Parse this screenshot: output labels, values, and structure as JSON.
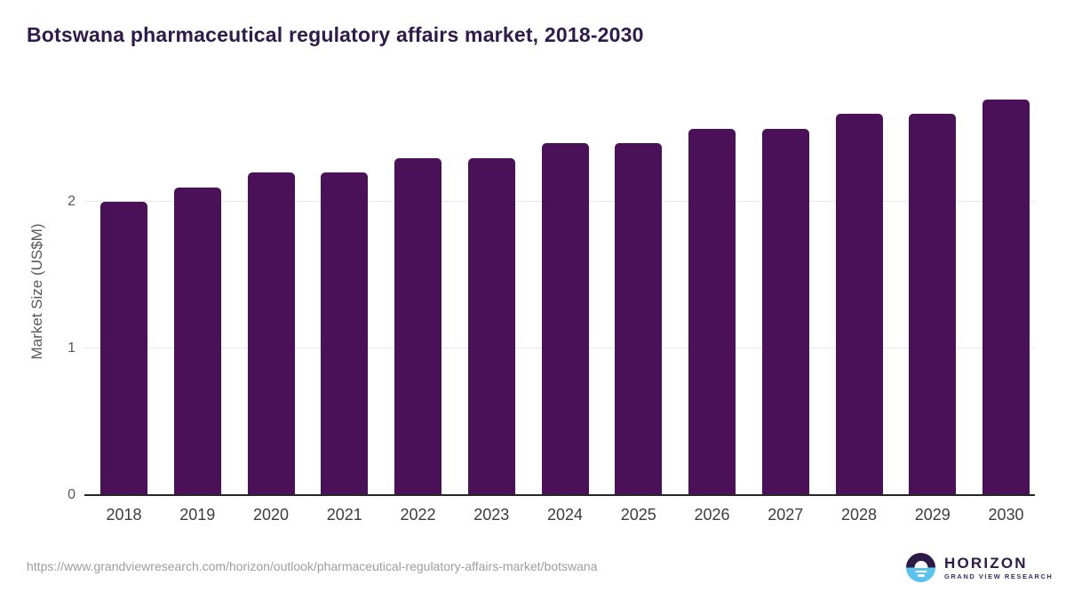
{
  "header": {
    "title": "Botswana pharmaceutical regulatory affairs market, 2018-2030"
  },
  "chart_data": {
    "type": "bar",
    "title": "Botswana pharmaceutical regulatory affairs market, 2018-2030",
    "categories": [
      "2018",
      "2019",
      "2020",
      "2021",
      "2022",
      "2023",
      "2024",
      "2025",
      "2026",
      "2027",
      "2028",
      "2029",
      "2030"
    ],
    "values": [
      2.0,
      2.1,
      2.2,
      2.2,
      2.3,
      2.3,
      2.4,
      2.4,
      2.5,
      2.5,
      2.6,
      2.6,
      2.7
    ],
    "xlabel": "",
    "ylabel": "Market Size (US$M)",
    "ylim": [
      0,
      2.77
    ],
    "yticks": [
      0,
      1,
      2
    ],
    "grid": "horizontal",
    "legend": "none",
    "bar_color": "#4a1159"
  },
  "footer": {
    "source_url": "https://www.grandviewresearch.com/horizon/outlook/pharmaceutical-regulatory-affairs-market/botswana",
    "logo": {
      "brand": "HORIZON",
      "sub_brand": "GRAND VIEW RESEARCH",
      "icon": "horizon-sunrise-icon"
    }
  },
  "colors": {
    "bar": "#4a1159",
    "title": "#2f1a4c",
    "grid": "#e7e7e7",
    "axis_line": "#262626",
    "y_tick_label": "#595959",
    "x_tick_label": "#3d3d3d",
    "source_url": "#9e9e9e",
    "logo_purple": "#2e1a47",
    "logo_blue": "#59c3ee",
    "background": "#ffffff"
  }
}
